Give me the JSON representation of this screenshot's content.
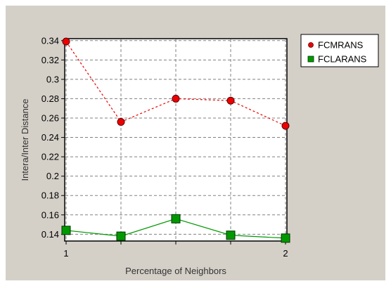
{
  "chart_data": {
    "type": "line",
    "title": "",
    "xlabel": "Percentage of Neighbors",
    "ylabel": "Intera/Inter Distance",
    "x": [
      1,
      1.25,
      1.5,
      1.75,
      2
    ],
    "x_ticks": [
      {
        "value": 1,
        "label": "1"
      },
      {
        "value": 2,
        "label": "2"
      }
    ],
    "y_ticks": [
      "0.34",
      "0.32",
      "0.3",
      "0.28",
      "0.26",
      "0.24",
      "0.22",
      "0.2",
      "0.18",
      "0.16",
      "0.14"
    ],
    "xlim": [
      1,
      2
    ],
    "ylim": [
      0.133,
      0.342
    ],
    "grid": true,
    "legend_position": "top-right",
    "series": [
      {
        "name": "FCMRANS",
        "values": [
          0.339,
          0.256,
          0.28,
          0.278,
          0.252
        ],
        "color": "#ee0000",
        "line_style": "dashed",
        "marker": "circle"
      },
      {
        "name": "FCLARANS",
        "values": [
          0.144,
          0.138,
          0.156,
          0.139,
          0.136
        ],
        "color": "#009900",
        "line_style": "solid",
        "marker": "square"
      }
    ]
  }
}
